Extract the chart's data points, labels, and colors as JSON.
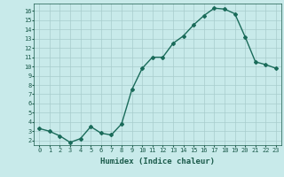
{
  "x": [
    0,
    1,
    2,
    3,
    4,
    5,
    6,
    7,
    8,
    9,
    10,
    11,
    12,
    13,
    14,
    15,
    16,
    17,
    18,
    19,
    20,
    21,
    22,
    23
  ],
  "y": [
    3.3,
    3.0,
    2.5,
    1.8,
    2.2,
    3.5,
    2.8,
    2.6,
    3.8,
    7.5,
    9.8,
    11.0,
    11.0,
    12.5,
    13.3,
    14.5,
    15.5,
    16.3,
    16.2,
    15.7,
    13.2,
    10.5,
    10.2,
    9.8
  ],
  "line_color": "#1a6b5a",
  "marker": "D",
  "marker_size": 2.0,
  "bg_color": "#c8eaea",
  "grid_color": "#a8cccc",
  "xlabel": "Humidex (Indice chaleur)",
  "xlim": [
    -0.5,
    23.5
  ],
  "ylim": [
    1.5,
    16.8
  ],
  "yticks": [
    2,
    3,
    4,
    5,
    6,
    7,
    8,
    9,
    10,
    11,
    12,
    13,
    14,
    15,
    16
  ],
  "xticks": [
    0,
    1,
    2,
    3,
    4,
    5,
    6,
    7,
    8,
    9,
    10,
    11,
    12,
    13,
    14,
    15,
    16,
    17,
    18,
    19,
    20,
    21,
    22,
    23
  ],
  "font_color": "#1a5a4a",
  "tick_label_size": 5.0,
  "xlabel_size": 6.5,
  "linewidth": 1.0
}
